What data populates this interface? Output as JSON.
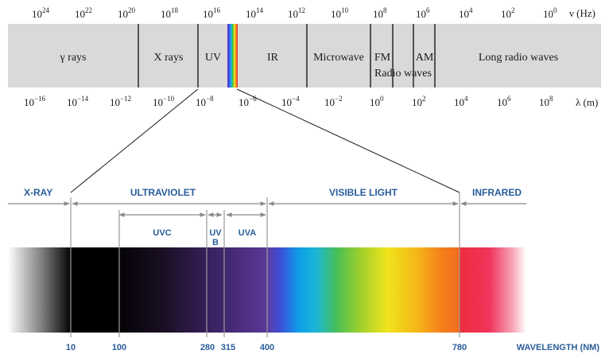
{
  "top_scale": {
    "frequency_ticks": [
      {
        "base": "10",
        "exp": "24"
      },
      {
        "base": "10",
        "exp": "22"
      },
      {
        "base": "10",
        "exp": "20"
      },
      {
        "base": "10",
        "exp": "18"
      },
      {
        "base": "10",
        "exp": "16"
      },
      {
        "base": "10",
        "exp": "14"
      },
      {
        "base": "10",
        "exp": "12"
      },
      {
        "base": "10",
        "exp": "10"
      },
      {
        "base": "10",
        "exp": "8"
      },
      {
        "base": "10",
        "exp": "6"
      },
      {
        "base": "10",
        "exp": "4"
      },
      {
        "base": "10",
        "exp": "2"
      },
      {
        "base": "10",
        "exp": "0"
      }
    ],
    "frequency_unit": "ν (Hz)",
    "wavelength_ticks": [
      {
        "base": "10",
        "exp": "−16"
      },
      {
        "base": "10",
        "exp": "−14"
      },
      {
        "base": "10",
        "exp": "−12"
      },
      {
        "base": "10",
        "exp": "−10"
      },
      {
        "base": "10",
        "exp": "−8"
      },
      {
        "base": "10",
        "exp": "−6"
      },
      {
        "base": "10",
        "exp": "−4"
      },
      {
        "base": "10",
        "exp": "−2"
      },
      {
        "base": "10",
        "exp": "0"
      },
      {
        "base": "10",
        "exp": "2"
      },
      {
        "base": "10",
        "exp": "4"
      },
      {
        "base": "10",
        "exp": "6"
      },
      {
        "base": "10",
        "exp": "8"
      }
    ],
    "wavelength_unit": "λ (m)",
    "regions": {
      "gamma": "γ rays",
      "xray": "X rays",
      "uv": "UV",
      "ir": "IR",
      "microwave": "Microwave",
      "fm": "FM",
      "am": "AM",
      "radio": "Radio waves",
      "long_radio": "Long radio waves"
    },
    "colors": {
      "band": "#d9d9d9",
      "divider": "#1a1a1a"
    }
  },
  "bottom_scale": {
    "regions": {
      "xray": "X-RAY",
      "ultraviolet": "ULTRAVIOLET",
      "visible": "VISIBLE LIGHT",
      "infrared": "INFRARED"
    },
    "sub_regions": {
      "uvc": "UVC",
      "uvb_line1": "UV",
      "uvb_line2": "B",
      "uva": "UVA"
    },
    "wavelength_ticks": [
      "10",
      "100",
      "280",
      "315",
      "400",
      "780"
    ],
    "axis_label": "WAVELENGTH (NM)",
    "colors": {
      "label": "#2a5d9a",
      "guide": "#888888"
    }
  }
}
